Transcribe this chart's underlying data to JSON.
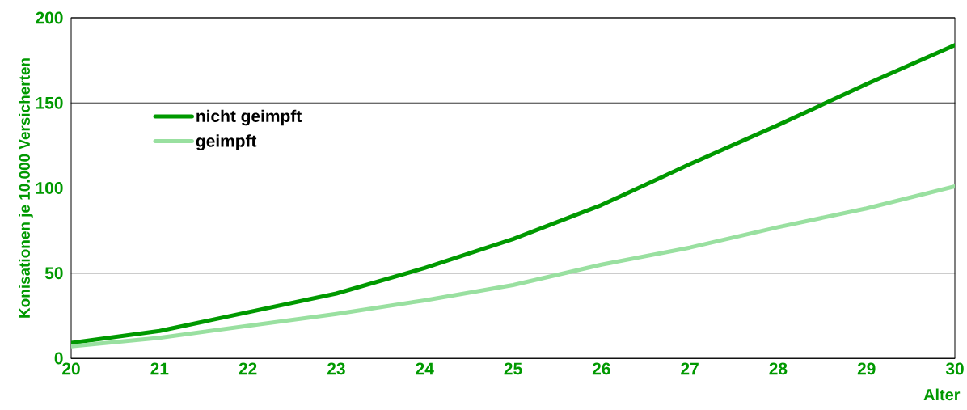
{
  "chart_data": {
    "type": "line",
    "xlabel": "Alter",
    "ylabel": "Konisationen je 10.000 Versicherten",
    "x": [
      20,
      21,
      22,
      23,
      24,
      25,
      26,
      27,
      28,
      29,
      30
    ],
    "series": [
      {
        "name": "nicht geimpft",
        "color": "#009900",
        "values": [
          9,
          16,
          27,
          38,
          53,
          70,
          90,
          114,
          137,
          161,
          184
        ]
      },
      {
        "name": "geimpft",
        "color": "#99e0a0",
        "values": [
          7,
          12,
          19,
          26,
          34,
          43,
          55,
          65,
          77,
          88,
          101
        ]
      }
    ],
    "xlim": [
      20,
      30
    ],
    "xticks": [
      20,
      21,
      22,
      23,
      24,
      25,
      26,
      27,
      28,
      29,
      30
    ],
    "ylim": [
      0,
      200
    ],
    "yticks": [
      0,
      50,
      100,
      150,
      200
    ],
    "grid": "y",
    "legend": "top left",
    "marker": "none",
    "line_style": "solid"
  }
}
